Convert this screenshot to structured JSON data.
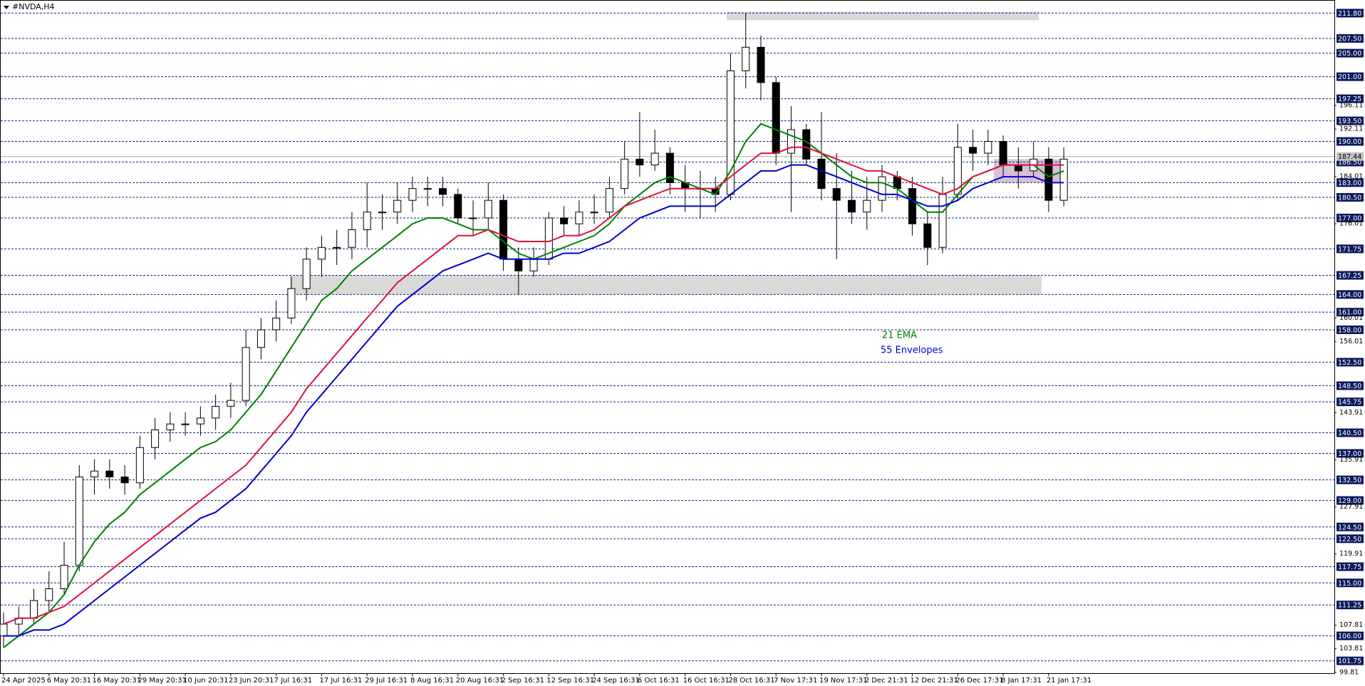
{
  "chart_data": {
    "type": "candlestick",
    "title": "#NVDA,H4",
    "categories": [
      "24 Apr 2025",
      null,
      null,
      "6 May 20:31",
      null,
      null,
      "16 May 20:31",
      null,
      null,
      "29 May 20:31",
      null,
      null,
      "10 Jun 20:31",
      null,
      null,
      "23 Jun 20:31",
      null,
      null,
      "7 Jul 16:31",
      null,
      null,
      "17 Jul 16:31",
      null,
      null,
      "29 Jul 16:31",
      null,
      null,
      "8 Aug 16:31",
      null,
      null,
      "20 Aug 16:31",
      null,
      null,
      "2 Sep 16:31",
      null,
      null,
      "12 Sep 16:31",
      null,
      null,
      "24 Sep 16:31",
      null,
      null,
      "6 Oct 16:31",
      null,
      null,
      "16 Oct 16:31",
      null,
      null,
      "28 Oct 16:31",
      null,
      null,
      "7 Nov 17:31",
      null,
      null,
      "19 Nov 17:31",
      null,
      null,
      "2 Dec 21:31",
      null,
      null,
      "12 Dec 21:31",
      null,
      null,
      "26 Dec 17:31",
      null,
      null,
      "8 Jan 17:31",
      null,
      null,
      "21 Jan 17:31",
      null
    ],
    "open": [
      106,
      108,
      109,
      112,
      114,
      118,
      133,
      134,
      133,
      132,
      138,
      141,
      142,
      142,
      143,
      145,
      146,
      155,
      158,
      160,
      165,
      170,
      172,
      172,
      175,
      178,
      178,
      180,
      182,
      182,
      181,
      177,
      177,
      180,
      170,
      168,
      170,
      177,
      176,
      178,
      178,
      182,
      187,
      186,
      188,
      183,
      182,
      182,
      181,
      202,
      206,
      200,
      188,
      192,
      187,
      182,
      180,
      178,
      180,
      184,
      182,
      176,
      172,
      181,
      189,
      188,
      190,
      186,
      185,
      187,
      180
    ],
    "high": [
      110,
      111,
      114,
      117,
      122,
      135,
      136,
      136,
      135,
      140,
      143,
      144,
      144,
      145,
      147,
      149,
      158,
      160,
      163,
      167,
      172,
      174,
      175,
      178,
      183,
      181,
      183,
      184,
      184,
      184,
      182,
      180,
      183,
      181,
      172,
      172,
      178,
      179,
      180,
      181,
      184,
      190,
      195,
      192,
      189,
      186,
      185,
      184,
      205,
      211.8,
      208,
      201,
      196,
      193,
      195,
      188,
      185,
      184,
      186,
      185,
      184,
      178,
      184,
      193,
      192,
      192,
      191,
      189,
      190,
      189,
      189
    ],
    "low": [
      104,
      106,
      108,
      110,
      113,
      117,
      130,
      131,
      130,
      131,
      136,
      139,
      140,
      140,
      141,
      143,
      145,
      153,
      156,
      159,
      163,
      167,
      169,
      170,
      172,
      175,
      176,
      178,
      179,
      179,
      176,
      174,
      175,
      168,
      164,
      167,
      169,
      174,
      174,
      176,
      177,
      181,
      184,
      185,
      181,
      178,
      177,
      178,
      180,
      199,
      197,
      186,
      178,
      186,
      180,
      170,
      176,
      175,
      178,
      180,
      174,
      169,
      171,
      180,
      185,
      186,
      184,
      182,
      184,
      178,
      179
    ],
    "close": [
      108,
      109,
      112,
      114,
      118,
      133,
      134,
      133,
      132,
      138,
      141,
      142,
      142,
      143,
      145,
      146,
      155,
      158,
      160,
      165,
      170,
      172,
      172,
      175,
      178,
      178,
      180,
      182,
      182,
      181,
      177,
      177,
      180,
      170,
      168,
      170,
      177,
      176,
      178,
      178,
      182,
      187,
      186,
      188,
      183,
      182,
      182,
      181,
      202,
      206,
      200,
      188,
      192,
      187,
      182,
      180,
      178,
      180,
      184,
      182,
      176,
      172,
      181,
      189,
      188,
      190,
      186,
      185,
      187,
      180,
      187
    ],
    "lines": [
      {
        "name": "21 EMA",
        "color": "#008000",
        "values": [
          104,
          106,
          108,
          110,
          113,
          118,
          122,
          125,
          127,
          130,
          132,
          134,
          136,
          138,
          139,
          141,
          144,
          147,
          151,
          155,
          159,
          163,
          165,
          168,
          170,
          172,
          174,
          176,
          177,
          177,
          176,
          175,
          175,
          173,
          171,
          170,
          171,
          172,
          173,
          174,
          176,
          179,
          181,
          183,
          184,
          183,
          182,
          181,
          185,
          190,
          193,
          192,
          191,
          190,
          188,
          186,
          184,
          183,
          183,
          182,
          180,
          178,
          178,
          181,
          184,
          185,
          186,
          186,
          186,
          184,
          185
        ]
      },
      {
        "name": "55 Envelopes",
        "color": "#0000cd",
        "values": [
          106,
          106,
          107,
          107,
          108,
          110,
          112,
          114,
          116,
          118,
          120,
          122,
          124,
          126,
          127,
          129,
          131,
          134,
          137,
          140,
          144,
          147,
          150,
          153,
          156,
          159,
          162,
          164,
          166,
          168,
          169,
          170,
          171,
          170,
          170,
          170,
          170,
          171,
          171,
          172,
          173,
          175,
          177,
          178,
          179,
          179,
          179,
          179,
          181,
          183,
          185,
          185,
          186,
          186,
          185,
          184,
          183,
          182,
          181,
          181,
          180,
          179,
          179,
          180,
          182,
          183,
          184,
          184,
          184,
          183,
          183
        ]
      },
      {
        "color": "#dc143c",
        "values": [
          108,
          109,
          109,
          110,
          111,
          113,
          115,
          117,
          119,
          121,
          123,
          125,
          127,
          129,
          131,
          133,
          135,
          138,
          141,
          144,
          148,
          151,
          154,
          157,
          160,
          163,
          166,
          168,
          170,
          172,
          174,
          174,
          175,
          174,
          173,
          173,
          173,
          174,
          174,
          175,
          177,
          179,
          180,
          181,
          182,
          182,
          182,
          182,
          184,
          186,
          188,
          188,
          189,
          189,
          188,
          187,
          186,
          185,
          185,
          184,
          183,
          182,
          181,
          182,
          184,
          185,
          186,
          186,
          186,
          186,
          186
        ]
      }
    ],
    "ylim": [
      99.66,
      214.03
    ],
    "levels": [
      {
        "value": 211.8,
        "label": "211.80"
      },
      {
        "value": 207.5,
        "label": "207.50"
      },
      {
        "value": 205,
        "label": "205.00"
      },
      {
        "value": 201,
        "label": "201.00"
      },
      {
        "value": 197.25,
        "label": "197.25"
      },
      {
        "value": 193.5,
        "label": "193.50"
      },
      {
        "value": 190,
        "label": "190.00"
      },
      {
        "value": 186.5,
        "label": "186.50"
      },
      {
        "value": 183,
        "label": "183.00"
      },
      {
        "value": 180.5,
        "label": "180.50"
      },
      {
        "value": 177,
        "label": "177.00"
      },
      {
        "value": 171.75,
        "label": "171.75"
      },
      {
        "value": 167.25,
        "label": "167.25"
      },
      {
        "value": 164,
        "label": "164.00"
      },
      {
        "value": 161,
        "label": "161.00"
      },
      {
        "value": 158,
        "label": "158.00"
      },
      {
        "value": 152.5,
        "label": "152.50"
      },
      {
        "value": 148.5,
        "label": "148.50"
      },
      {
        "value": 145.75,
        "label": "145.75"
      },
      {
        "value": 140.5,
        "label": "140.50"
      },
      {
        "value": 137,
        "label": "137.00"
      },
      {
        "value": 132.5,
        "label": "132.50"
      },
      {
        "value": 129,
        "label": "129.00"
      },
      {
        "value": 124.5,
        "label": "124.50"
      },
      {
        "value": 122.5,
        "label": "122.50"
      },
      {
        "value": 117.75,
        "label": "117.75"
      },
      {
        "value": 115,
        "label": "115.00"
      },
      {
        "value": 111.25,
        "label": "111.25"
      },
      {
        "value": 106,
        "label": "106.00"
      },
      {
        "value": 101.75,
        "label": "101.75"
      }
    ],
    "yticks": [
      196.11,
      192.11,
      184.01,
      176.01,
      160.01,
      156.01,
      143.91,
      135.91,
      127.91,
      119.91,
      107.81,
      103.81,
      99.81
    ],
    "last_price": 187.44
  }
}
